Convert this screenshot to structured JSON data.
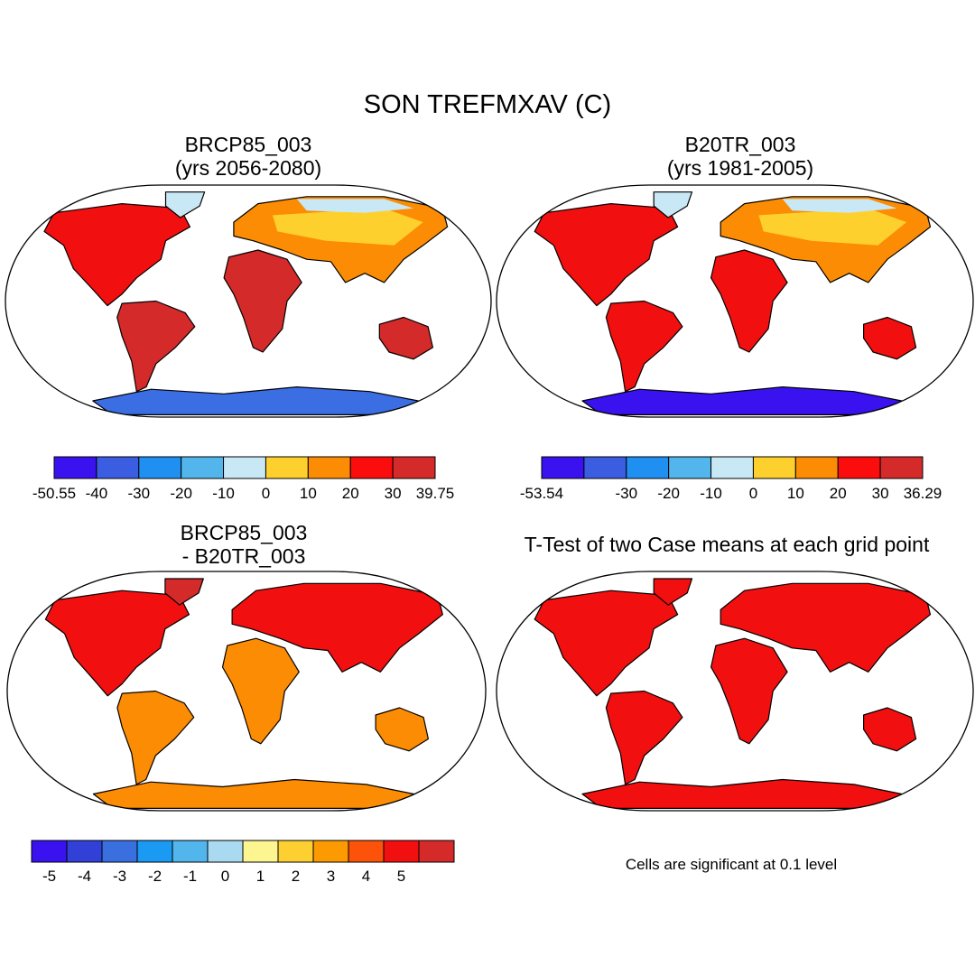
{
  "title": "SON TREFMXAV (C)",
  "panels": [
    {
      "title_line1": "BRCP85_003",
      "title_line2": "(yrs 2056-2080)",
      "colorbar": {
        "colors": [
          "#3a12f0",
          "#3b5de2",
          "#1f8ff2",
          "#52b6ec",
          "#c9e8f5",
          "#fdd02e",
          "#fc8c03",
          "#fc0d0d",
          "#d42a2a"
        ],
        "labels": [
          "-50.55",
          "-40",
          "-30",
          "-20",
          "-10",
          "0",
          "10",
          "20",
          "30",
          "39.75"
        ]
      }
    },
    {
      "title_line1": "B20TR_003",
      "title_line2": "(yrs 1981-2005)",
      "colorbar": {
        "colors": [
          "#3a12f0",
          "#3b5de2",
          "#1f8ff2",
          "#52b6ec",
          "#c9e8f5",
          "#fdd02e",
          "#fc8c03",
          "#fc0d0d",
          "#d42a2a"
        ],
        "labels": [
          "-53.54",
          "",
          "-30",
          "-20",
          "-10",
          "0",
          "10",
          "20",
          "30",
          "36.29"
        ]
      }
    },
    {
      "title_line1": "BRCP85_003",
      "title_line2": "- B20TR_003",
      "colorbar": {
        "colors": [
          "#3a12f0",
          "#3141d8",
          "#3a6fe0",
          "#1a9af2",
          "#52b6ec",
          "#a9daf2",
          "#fdf590",
          "#fdcf30",
          "#fc9a02",
          "#fd520a",
          "#f20f0f",
          "#d42a2a"
        ],
        "labels": [
          "-5",
          "-4",
          "-3",
          "-2",
          "-1",
          "0",
          "1",
          "2",
          "3",
          "4",
          "5"
        ]
      }
    },
    {
      "title": "T-Test of two Case means at each grid point",
      "note": "Cells are significant at 0.1 level"
    }
  ],
  "colors": {
    "warm_dark": "#d42a2a",
    "warm_red": "#f20f0f",
    "orange": "#fc8c03",
    "yellow": "#fdd02e",
    "light_blue": "#c9e8f5",
    "blue": "#3b6ee3",
    "deep_blue": "#3a12f0"
  }
}
